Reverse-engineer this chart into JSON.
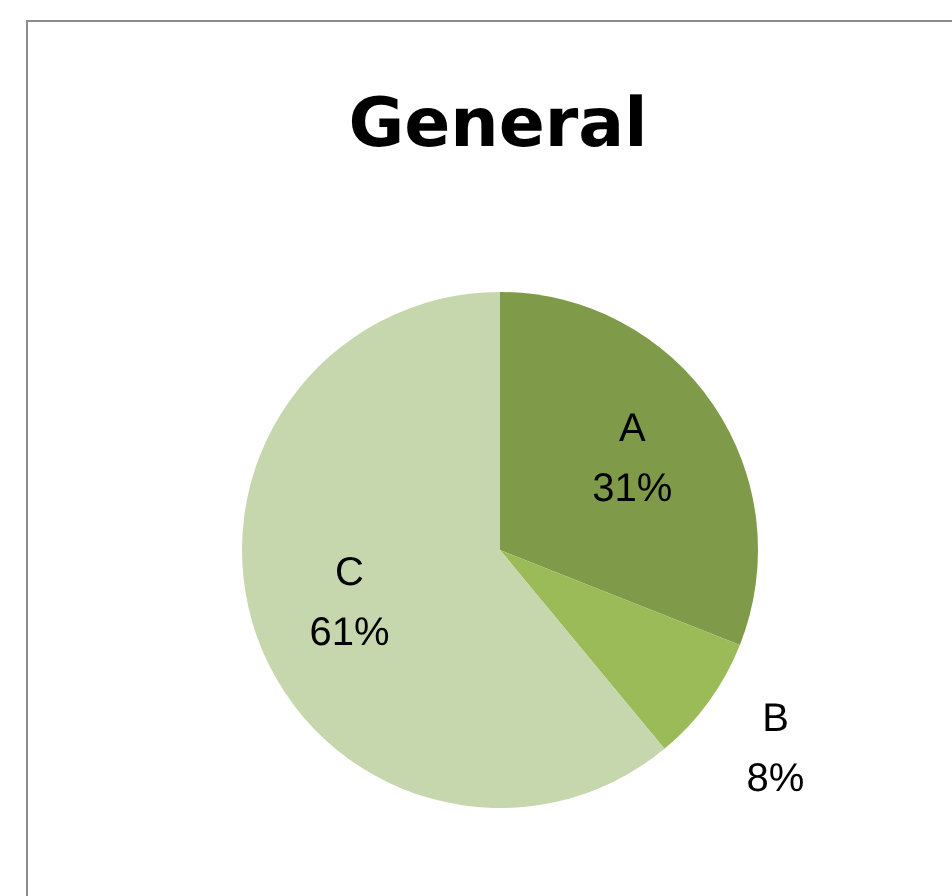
{
  "chart_data": {
    "type": "pie",
    "title": "General",
    "categories": [
      "A",
      "B",
      "C"
    ],
    "values": [
      31,
      8,
      61
    ],
    "colors": [
      "#7f9a48",
      "#9bbb59",
      "#c6d7ae"
    ],
    "value_labels": [
      "31%",
      "8%",
      "61%"
    ],
    "legend": false
  }
}
